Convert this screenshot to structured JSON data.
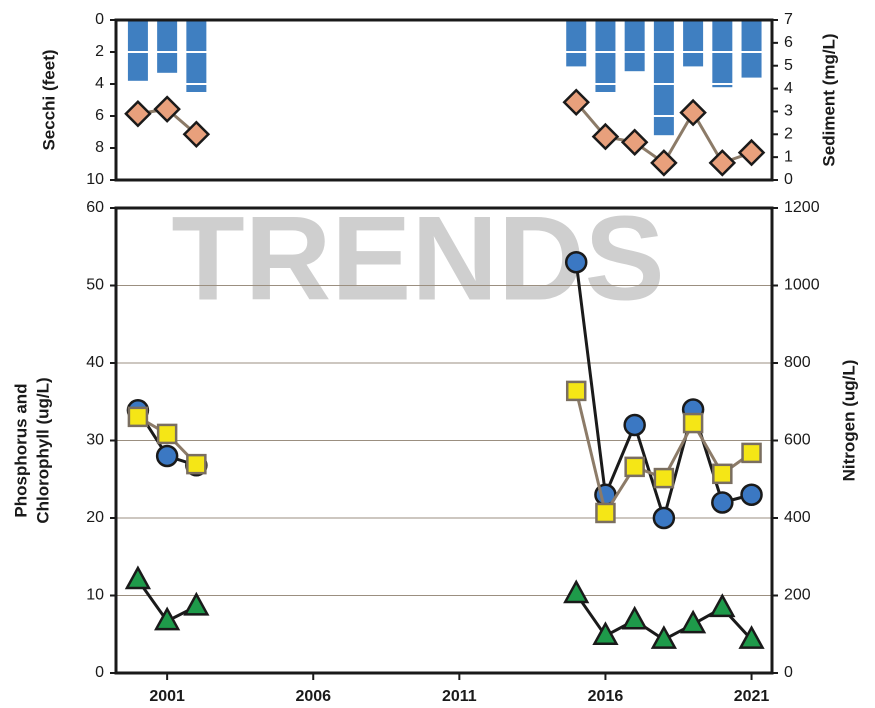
{
  "watermark": "TRENDS",
  "chart_data": [
    {
      "type": "bar",
      "ylabel": "Secchi (feet)",
      "y2label": "Sediment (mg/L)",
      "x": [
        2000,
        2001,
        2002,
        2003,
        2004,
        2005,
        2006,
        2007,
        2008,
        2009,
        2010,
        2011,
        2012,
        2013,
        2014,
        2015,
        2016,
        2017,
        2018,
        2019,
        2020,
        2021
      ],
      "xlim": [
        1999.25,
        2021.7
      ],
      "ylim": [
        0,
        10
      ],
      "yticks": [
        0,
        2,
        4,
        6,
        8,
        10
      ],
      "invert_y": true,
      "y2lim": [
        0,
        7
      ],
      "y2ticks": [
        0,
        1,
        2,
        3,
        4,
        5,
        6,
        7
      ],
      "series": [
        {
          "type": "bar",
          "color": "#3f7fc1",
          "values": [
            3.8,
            3.3,
            4.5,
            null,
            null,
            null,
            null,
            null,
            null,
            null,
            null,
            null,
            null,
            null,
            null,
            2.9,
            4.5,
            3.2,
            7.2,
            2.9,
            4.2,
            3.6
          ]
        },
        {
          "type": "line",
          "axis": "y2",
          "color": "#e8a07c",
          "line_color": "#8c7b68",
          "marker": "diamond",
          "values": [
            2.9,
            3.1,
            2.0,
            null,
            null,
            null,
            null,
            null,
            null,
            null,
            null,
            null,
            null,
            null,
            null,
            3.4,
            1.9,
            1.65,
            0.75,
            2.95,
            0.75,
            1.2
          ]
        }
      ]
    },
    {
      "type": "line",
      "ylabel": [
        "Phosphorus and",
        "Chlorophyll (ug/L)"
      ],
      "y2label": "Nitrogen (ug/L)",
      "x": [
        2000,
        2001,
        2002,
        2003,
        2004,
        2005,
        2006,
        2007,
        2008,
        2009,
        2010,
        2011,
        2012,
        2013,
        2014,
        2015,
        2016,
        2017,
        2018,
        2019,
        2020,
        2021
      ],
      "xlim": [
        1999.25,
        2021.7
      ],
      "xticks": [
        2001,
        2006,
        2011,
        2016,
        2021
      ],
      "ylim": [
        0,
        60
      ],
      "yticks": [
        0,
        10,
        20,
        30,
        40,
        50,
        60
      ],
      "y2lim": [
        0,
        1200
      ],
      "y2ticks": [
        0,
        200,
        400,
        600,
        800,
        1000,
        1200
      ],
      "grid": true,
      "series": [
        {
          "color": "#3b78c3",
          "line_color": "#1a1a1a",
          "marker": "circle",
          "values": [
            33.9,
            28,
            26.8,
            null,
            null,
            null,
            null,
            null,
            null,
            null,
            null,
            null,
            null,
            null,
            null,
            53,
            23,
            32,
            20,
            34,
            22,
            23
          ]
        },
        {
          "axis": "y2",
          "color": "#f5e616",
          "line_color": "#8c7b68",
          "marker": "square",
          "values": [
            661,
            617,
            539,
            null,
            null,
            null,
            null,
            null,
            null,
            null,
            null,
            null,
            null,
            null,
            null,
            728,
            413,
            532,
            503,
            645,
            514,
            568
          ]
        },
        {
          "color": "#1e9a4a",
          "line_color": "#1a1a1a",
          "marker": "triangle",
          "values": [
            12,
            6.7,
            8.6,
            null,
            null,
            null,
            null,
            null,
            null,
            null,
            null,
            null,
            null,
            null,
            null,
            10.2,
            4.8,
            6.8,
            4.3,
            6.3,
            8.4,
            4.3
          ]
        }
      ]
    }
  ]
}
